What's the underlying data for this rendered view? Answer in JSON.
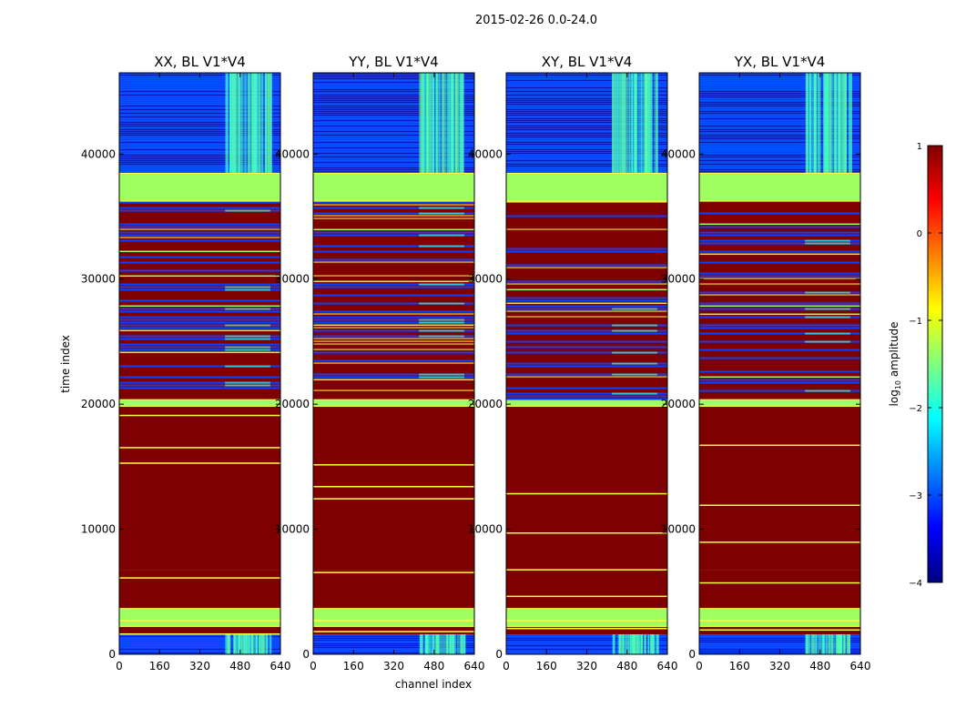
{
  "suptitle": "2015-02-26 0.0-24.0",
  "chart_data": {
    "type": "heatmap",
    "title": "2015-02-26 0.0-24.0",
    "xlabel": "channel index",
    "ylabel": "time index",
    "xlim": [
      0,
      640
    ],
    "ylim": [
      0,
      46500
    ],
    "xticks": [
      "0",
      "160",
      "320",
      "480",
      "640"
    ],
    "yticks": [
      "0",
      "10000",
      "20000",
      "30000",
      "40000"
    ],
    "colorbar": {
      "label": "log$_{10}$ amplitude",
      "label_main": "log",
      "label_sub": "10",
      "label_rest": " amplitude",
      "range": [
        -4,
        1
      ],
      "ticks": [
        "1",
        "0",
        "−1",
        "−2",
        "−3",
        "−4"
      ],
      "colormap": "jet",
      "stops": [
        "#00007f",
        "#0000ff",
        "#007fff",
        "#00ffff",
        "#7fff7f",
        "#ffff00",
        "#ff7f00",
        "#ff0000",
        "#7f0000"
      ]
    },
    "panels": [
      {
        "title": "XX, BL V1*V4"
      },
      {
        "title": "YY, BL V1*V4"
      },
      {
        "title": "XY, BL V1*V4"
      },
      {
        "title": "YX, BL V1*V4"
      }
    ],
    "regions": [
      {
        "t0": 0,
        "t1": 1600,
        "level": "low-noise",
        "value": -2.6
      },
      {
        "t0": 1600,
        "t1": 2200,
        "level": "saturated",
        "value": 1
      },
      {
        "t0": 2200,
        "t1": 2700,
        "level": "flagged",
        "value": -1.3
      },
      {
        "t0": 2700,
        "t1": 3700,
        "level": "flagged",
        "value": -1.3
      },
      {
        "t0": 3700,
        "t1": 6700,
        "level": "saturated",
        "value": 1
      },
      {
        "t0": 6700,
        "t1": 19800,
        "level": "saturated",
        "value": 1
      },
      {
        "t0": 19800,
        "t1": 20400,
        "level": "flagged",
        "value": -1.3
      },
      {
        "t0": 20400,
        "t1": 36200,
        "level": "mixed",
        "value": 1
      },
      {
        "t0": 36200,
        "t1": 38500,
        "level": "flagged",
        "value": -1.3
      },
      {
        "t0": 38500,
        "t1": 46500,
        "level": "noise",
        "value": -2.9
      }
    ],
    "rfi_channels": [
      420,
      600
    ]
  }
}
